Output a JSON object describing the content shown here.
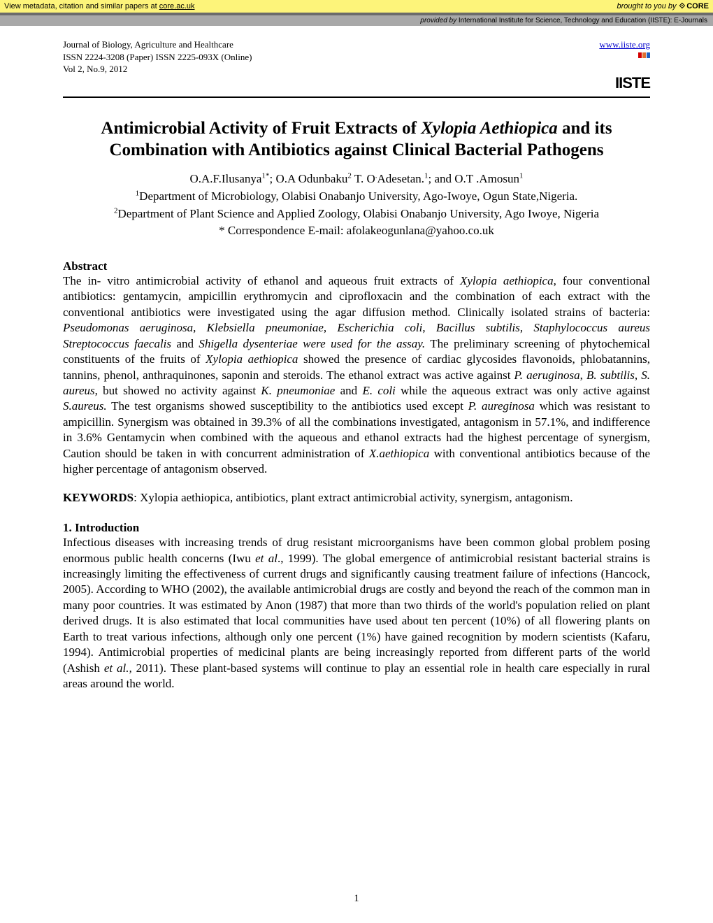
{
  "core_banner": {
    "left_text": "View metadata, citation and similar papers at ",
    "left_link": "core.ac.uk",
    "right_prefix": "brought to you by ",
    "logo_text": "CORE"
  },
  "provided_bar": {
    "prefix": "provided by ",
    "text": "International Institute for Science, Technology and Education (IISTE): E-Journals"
  },
  "header": {
    "journal": "Journal of Biology, Agriculture and Healthcare",
    "issn": "ISSN 2224-3208 (Paper)  ISSN 2225-093X (Online)",
    "vol": "Vol 2, No.9, 2012",
    "url": "www.iiste.org",
    "logo_text": "IISTE",
    "flag_colors": [
      "#d40000",
      "#e07030",
      "#2060c0"
    ]
  },
  "title_plain_pre": "Antimicrobial Activity of Fruit Extracts of ",
  "title_italic": "Xylopia Aethiopica",
  "title_plain_post": " and its Combination with Antibiotics against Clinical Bacterial Pathogens",
  "authors_html": "O.A.F.Ilusanya<sup>1*</sup>; O.A Odunbaku<sup>2</sup> T. O<sup>.</sup>Adesetan.<sup>1</sup>; and  O.T .Amosun<sup>1</sup><br><sup>1</sup>Department of Microbiology, Olabisi Onabanjo University, Ago-Iwoye, Ogun State,Nigeria.<br><sup>2</sup>Department of Plant Science and Applied Zoology, Olabisi Onabanjo University, Ago Iwoye, Nigeria<br>* Correspondence E-mail: afolakeogunlana@yahoo.co.uk",
  "abstract_heading": "Abstract",
  "abstract_html": "The in- vitro antimicrobial activity of ethanol and aqueous fruit extracts of <span class=\"italic\">Xylopia aethiopica</span>, four conventional antibiotics: gentamycin, ampicillin erythromycin and ciprofloxacin and the combination of each extract with the conventional antibiotics were investigated using the agar diffusion method.  Clinically isolated strains of bacteria: <span class=\"italic\">Pseudomonas aeruginosa</span>, <span class=\"italic\">Klebsiella pneumoniae</span>, <span class=\"italic\">Escherichia coli</span>, <span class=\"italic\">Bacillus subtilis</span>,  <span class=\"italic\">Staphylococcus aureus   Streptococcus faecalis</span> and <span class=\"italic\">Shigella dysenteriae were used for the assay.</span> The preliminary screening of phytochemical constituents of the fruits of <span class=\"italic\">Xylopia aethiopica</span> showed the presence of cardiac glycosides flavonoids, phlobatannins, tannins, phenol, anthraquinones, saponin and steroids. The  ethanol extract was active against <span class=\"italic\">P. aeruginosa</span>, <span class=\"italic\">B. subtilis</span>, <span class=\"italic\">S. aureus</span>,  but showed no activity against <span class=\"italic\">K. pneumoniae</span> and  <span class=\"italic\">E. coli</span> while the aqueous extract was only active against <span class=\"italic\">S.aureus.</span> The test organisms showed susceptibility to the antibiotics used except <span class=\"italic\">P. aureginosa</span> which was resistant to ampicillin. Synergism was obtained in 39.3% of   all the combinations investigated, antagonism  in 57.1%, and indifference  in 3.6%  Gentamycin when combined with the aqueous and ethanol extracts had the highest percentage of synergism, Caution should be taken in with concurrent administration of <span class=\"italic\">X.aethiopica</span> with  conventional antibiotics  because of the higher percentage of antagonism observed.",
  "keywords_label": "KEYWORDS",
  "keywords_html": ": <span class=\"italic\">Xylopia aethiopica</span>, antibiotics, plant extract antimicrobial activity, synergism, antagonism.",
  "intro_heading": "1. Introduction",
  "intro_html": "Infectious diseases with increasing trends of drug resistant microorganisms have been common global problem posing enormous public health concerns (Iwu <span class=\"italic\">et al</span>., 1999). The global emergence of antimicrobial resistant bacterial strains is increasingly limiting the effectiveness of current drugs and significantly causing treatment failure of infections (Hancock, 2005). According to WHO (2002), the available antimicrobial drugs are costly and beyond the reach of the common man in many poor countries. It was estimated by Anon (1987) that more than two thirds of the world's population relied on plant derived drugs. It is also estimated that local communities have used about ten percent (10%) of all flowering plants on Earth to treat various infections, although only one percent (1%) have gained recognition by modern scientists (Kafaru, 1994). Antimicrobial properties of medicinal plants are being increasingly reported from different parts of the world (Ashish <span class=\"italic\">et al.,</span> 2011).  These plant-based systems will continue to play an essential role in health care especially in rural areas around the world.",
  "page_number": "1"
}
